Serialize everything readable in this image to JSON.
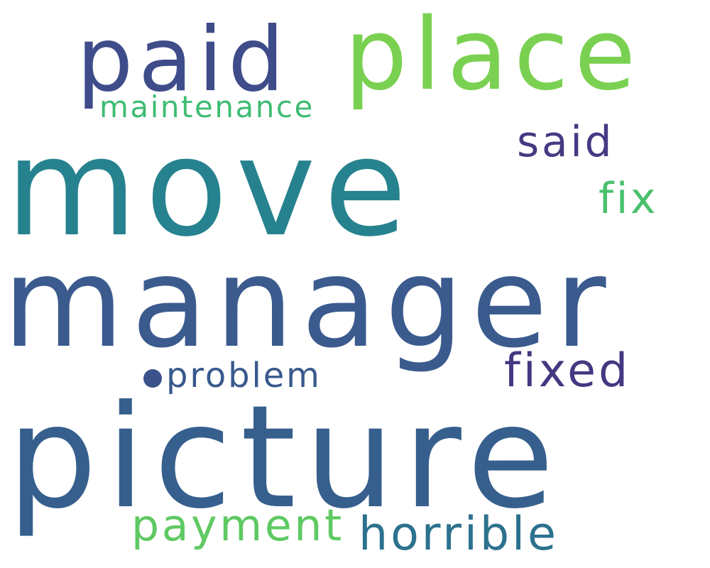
{
  "words": [
    {
      "key": "move",
      "text": "move",
      "color": "#26828e"
    },
    {
      "key": "manager",
      "text": "manager",
      "color": "#3b5b8e"
    },
    {
      "key": "picture",
      "text": "picture",
      "color": "#365f8d"
    },
    {
      "key": "place",
      "text": "place",
      "color": "#7ad151"
    },
    {
      "key": "paid",
      "text": "paid",
      "color": "#3e4c8a"
    },
    {
      "key": "maintenance",
      "text": "maintenance",
      "color": "#3fbc73"
    },
    {
      "key": "said",
      "text": "said",
      "color": "#443a83"
    },
    {
      "key": "fix",
      "text": "fix",
      "color": "#4ac16d"
    },
    {
      "key": "fixed",
      "text": "fixed",
      "color": "#453781"
    },
    {
      "key": "problem",
      "text": "problem",
      "color": "#38598c"
    },
    {
      "key": "payment",
      "text": "payment",
      "color": "#5ec962"
    },
    {
      "key": "horrible",
      "text": "horrible",
      "color": "#2c728e"
    }
  ],
  "dot": {
    "color": "#3b528b"
  }
}
